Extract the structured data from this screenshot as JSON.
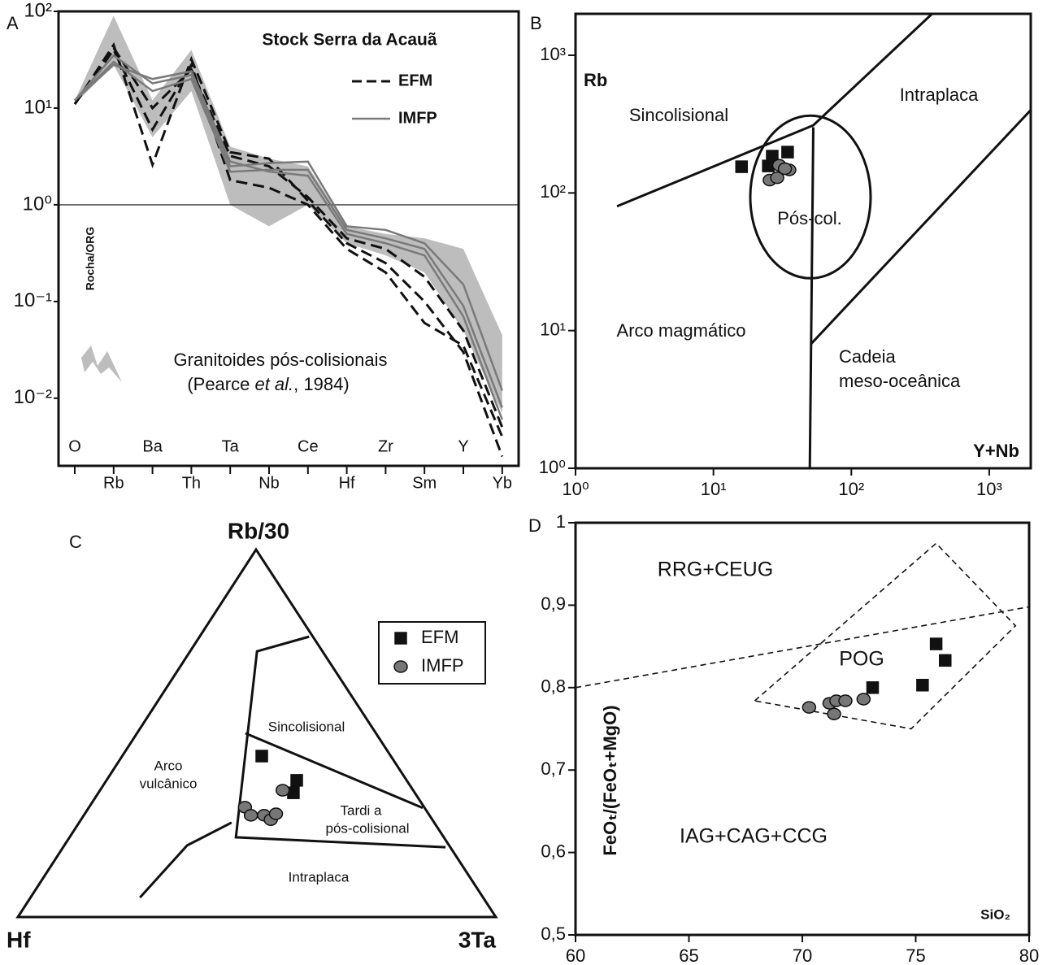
{
  "chart_data": [
    {
      "type": "spider",
      "panel": "A",
      "title": "Stock Serra da Acauã",
      "y_label": "Rocha/ORG",
      "categories": [
        "O",
        "Rb",
        "Ba",
        "Th",
        "Ta",
        "Nb",
        "Ce",
        "Hf",
        "Zr",
        "Sm",
        "Y",
        "Yb"
      ],
      "log_y": true,
      "ylim": [
        0.002,
        100
      ],
      "yticks": [
        {
          "value": 0.01,
          "label": "10⁻²"
        },
        {
          "value": 0.1,
          "label": "10⁻¹"
        },
        {
          "value": 1,
          "label": "10⁰"
        },
        {
          "value": 10,
          "label": "10¹"
        },
        {
          "value": 100,
          "label": "10²"
        }
      ],
      "reference_line": 1,
      "series": [
        {
          "name": "EFM",
          "color": "#111111",
          "dash": true,
          "values": [
            [
              11,
              45,
              2.6,
              32,
              3.5,
              3.0,
              1.1,
              0.4,
              0.25,
              0.1,
              0.03,
              0.0025
            ],
            [
              11,
              40,
              6,
              28,
              1.8,
              1.5,
              1.0,
              0.35,
              0.2,
              0.06,
              0.035,
              0.004
            ],
            [
              11,
              42,
              10,
              25,
              3.2,
              2.5,
              1.2,
              0.45,
              0.35,
              0.18,
              0.05,
              0.005
            ]
          ]
        },
        {
          "name": "IMFP",
          "color": "#7a7a7a",
          "dash": false,
          "values": [
            [
              12,
              35,
              18,
              22,
              2.5,
              2.7,
              2.8,
              0.6,
              0.55,
              0.4,
              0.15,
              0.012
            ],
            [
              12,
              30,
              15,
              20,
              2.2,
              2.3,
              2.3,
              0.55,
              0.45,
              0.35,
              0.09,
              0.008
            ],
            [
              12,
              28,
              20,
              24,
              2.8,
              2.2,
              2.0,
              0.5,
              0.4,
              0.3,
              0.07,
              0.006
            ]
          ]
        }
      ],
      "field": {
        "name": "Granitoides pós-colisionais",
        "source": [
          "(Pearce ",
          "et al.",
          ", 1984)"
        ],
        "color": "#bdbdbd",
        "upper": [
          12,
          90,
          12,
          40,
          4,
          3,
          2.5,
          0.6,
          0.5,
          0.45,
          0.35,
          0.045
        ],
        "lower": [
          11,
          28,
          5,
          15,
          1.0,
          0.6,
          1.0,
          0.4,
          0.3,
          0.2,
          0.05,
          0.007
        ]
      }
    },
    {
      "type": "scatter",
      "panel": "B",
      "x_label": "Y+Nb",
      "y_label": "Rb",
      "log_x": true,
      "log_y": true,
      "xlim": [
        1,
        2000
      ],
      "ylim": [
        1,
        2000
      ],
      "xticks": [
        {
          "value": 1,
          "label": "10⁰"
        },
        {
          "value": 10,
          "label": "10¹"
        },
        {
          "value": 100,
          "label": "10²"
        },
        {
          "value": 1000,
          "label": "10³"
        }
      ],
      "yticks": [
        {
          "value": 1,
          "label": "10⁰"
        },
        {
          "value": 10,
          "label": "10¹"
        },
        {
          "value": 100,
          "label": "10²"
        },
        {
          "value": 1000,
          "label": "10³"
        }
      ],
      "boundaries": [
        [
          [
            2,
            80
          ],
          [
            53,
            310
          ],
          [
            385,
            2000
          ]
        ],
        [
          [
            53,
            300
          ],
          [
            50,
            1
          ]
        ],
        [
          [
            51,
            8
          ],
          [
            2000,
            400
          ]
        ]
      ],
      "boundary_dash": false,
      "ellipse": {
        "x": [
          18.5,
          138
        ],
        "y": [
          24,
          364
        ]
      },
      "fields": [
        "Sincolisional",
        "Intraplaca",
        "Pós-col.",
        "Arco magmático",
        "Cadeia",
        "meso-oceânica"
      ],
      "series": [
        {
          "marker": "square",
          "color": "#111111",
          "x": [
            16,
            26.7,
            25,
            34.5
          ],
          "values": [
            155,
            185,
            157,
            198
          ]
        },
        {
          "marker": "circle",
          "color": "#777777",
          "x": [
            30,
            25.6,
            29,
            35.5,
            33
          ],
          "values": [
            159,
            124,
            129,
            147,
            150
          ]
        }
      ]
    },
    {
      "type": "ternary",
      "panel": "C",
      "vertices": [
        "Hf",
        "Rb/30",
        "3Ta"
      ],
      "boundaries": [
        [
          [
            0.8,
            76.3,
            22.9
          ],
          [
            13.7,
            72.3,
            14.0
          ],
          [
            43.5,
            21.7,
            34.8
          ],
          [
            1.0,
            19.0,
            80.0
          ]
        ],
        [
          [
            27.3,
            50.0,
            22.7
          ],
          [
            0.4,
            29.7,
            69.9
          ]
        ],
        [
          [
            71.8,
            5.3,
            22.9
          ],
          [
            54.8,
            19.5,
            25.7
          ],
          [
            42.4,
            25.7,
            31.9
          ]
        ]
      ],
      "fields": [
        "Sincolisional",
        "Arco",
        "vulcânico",
        "Tardi a",
        "pós-colisional",
        "Intraplaca"
      ],
      "series": [
        {
          "name": "EFM",
          "marker": "square",
          "color": "#111111",
          "values": [
            [
              27.0,
              43.8,
              29.2
            ],
            [
              23.0,
              37.2,
              39.8
            ],
            [
              25.4,
              33.8,
              40.8
            ]
          ]
        },
        {
          "name": "IMFP",
          "marker": "circle",
          "color": "#777777",
          "values": [
            [
              37.5,
              29.9,
              32.6
            ],
            [
              37.4,
              27.7,
              35.0
            ],
            [
              34.6,
              27.7,
              37.7
            ],
            [
              33.8,
              26.5,
              39.7
            ],
            [
              31.9,
              28.1,
              40.0
            ],
            [
              27.3,
              34.5,
              38.2
            ]
          ]
        }
      ]
    },
    {
      "type": "scatter",
      "panel": "D",
      "x_label": "SiO₂",
      "y_label": "FeOₜ/(FeOₜ+MgO)",
      "log_x": false,
      "log_y": false,
      "xlim": [
        60,
        80
      ],
      "ylim": [
        0.5,
        1
      ],
      "xticks": [
        60,
        65,
        70,
        75,
        80
      ],
      "yticks": [
        {
          "value": 0.5,
          "label": "0,5"
        },
        {
          "value": 0.6,
          "label": "0,6"
        },
        {
          "value": 0.7,
          "label": "0,7"
        },
        {
          "value": 0.8,
          "label": "0,8"
        },
        {
          "value": 0.9,
          "label": "0,9"
        },
        1
      ],
      "boundaries": [
        [
          [
            60,
            0.8
          ],
          [
            80,
            0.898
          ]
        ],
        [
          [
            67.9,
            0.784
          ],
          [
            75.9,
            0.975
          ],
          [
            79.4,
            0.875
          ],
          [
            74.8,
            0.75
          ],
          [
            67.9,
            0.784
          ]
        ]
      ],
      "boundary_dash": true,
      "fields": [
        "RRG+CEUG",
        "POG",
        "IAG+CAG+CCG"
      ],
      "series": [
        {
          "marker": "square",
          "color": "#111111",
          "x": [
            73.1,
            75.3,
            75.9,
            76.3
          ],
          "values": [
            0.8,
            0.803,
            0.853,
            0.833
          ]
        },
        {
          "marker": "circle",
          "color": "#777777",
          "x": [
            70.3,
            71.2,
            71.5,
            71.9,
            71.4,
            72.7
          ],
          "values": [
            0.776,
            0.781,
            0.784,
            0.784,
            0.768,
            0.786
          ]
        }
      ]
    }
  ]
}
